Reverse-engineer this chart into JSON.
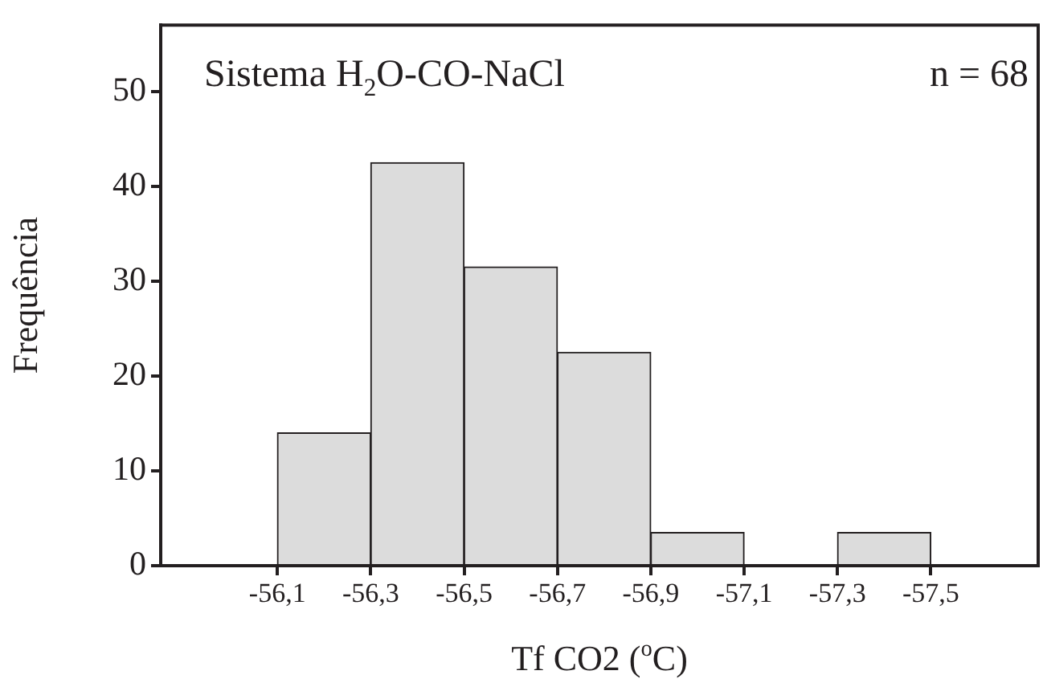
{
  "chart_data": {
    "type": "histogram",
    "xlabel": "Tf CO2 ($^{o}$C)",
    "ylabel": "Frequência",
    "annotations": [
      "Sistema H$_{2}$O-CO-NaCl",
      "n = 68"
    ],
    "bins": [
      -56.1,
      -56.3,
      -56.5,
      -56.7,
      -56.9,
      -57.1,
      -57.3,
      -57.5
    ],
    "values": [
      14,
      42.5,
      31.5,
      22.5,
      3.5,
      0,
      3.5
    ],
    "color": "#dcdcdc",
    "xlim": [
      -55.85,
      -57.73
    ],
    "xticks": [
      {
        "value": -56.1,
        "label": "-56,1"
      },
      {
        "value": -56.3,
        "label": "-56,3"
      },
      {
        "value": -56.5,
        "label": "-56,5"
      },
      {
        "value": -56.7,
        "label": "-56,7"
      },
      {
        "value": -56.9,
        "label": "-56,9"
      },
      {
        "value": -57.1,
        "label": "-57,1"
      },
      {
        "value": -57.3,
        "label": "-57,3"
      },
      {
        "value": -57.5,
        "label": "-57,5"
      }
    ],
    "ylim": [
      0,
      57
    ],
    "yticks": [
      0,
      10,
      20,
      30,
      40,
      50
    ],
    "grid": false
  }
}
